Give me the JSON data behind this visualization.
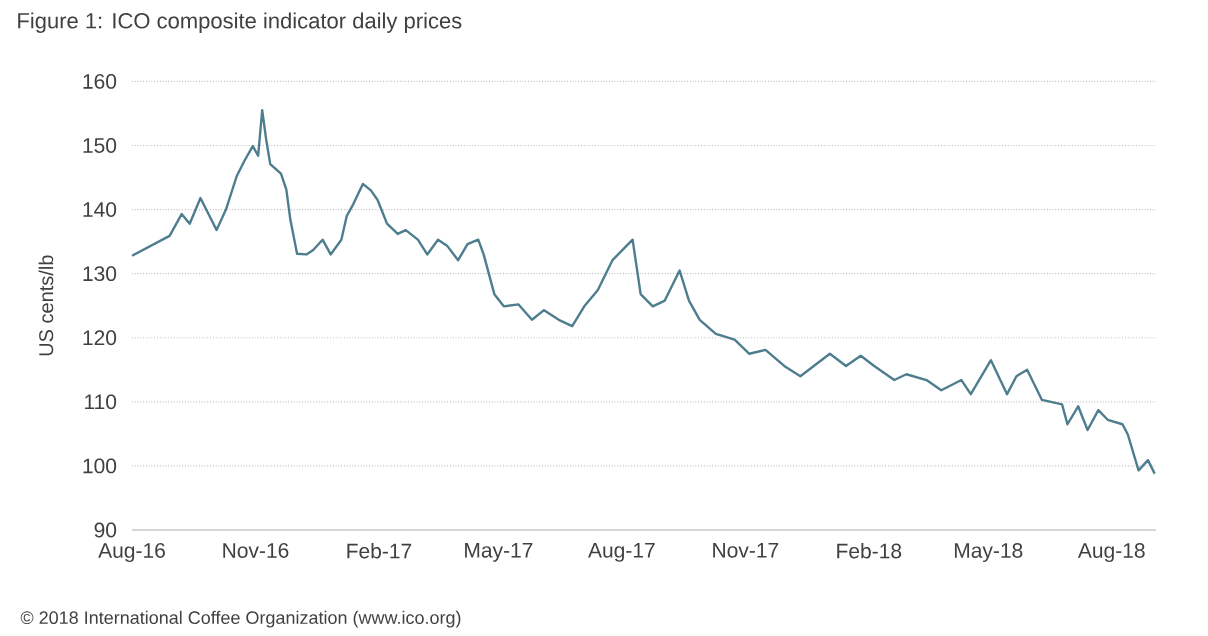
{
  "chart_data": {
    "type": "line",
    "title": "Figure 1: ICO composite indicator daily prices",
    "ylabel": "US cents/lb",
    "annotations": [
      "© 2018 International Coffee Organization (www.ico.org)"
    ],
    "color": "#4e7d8e",
    "grid": "y",
    "line_style": "solid",
    "xlim": [
      "2016-08-01",
      "2018-09-03"
    ],
    "xticks": [
      {
        "value": "2016-08-01",
        "label": "Aug-16"
      },
      {
        "value": "2016-11-01",
        "label": "Nov-16"
      },
      {
        "value": "2017-02-01",
        "label": "Feb-17"
      },
      {
        "value": "2017-05-01",
        "label": "May-17"
      },
      {
        "value": "2017-08-01",
        "label": "Aug-17"
      },
      {
        "value": "2017-11-01",
        "label": "Nov-17"
      },
      {
        "value": "2018-02-01",
        "label": "Feb-18"
      },
      {
        "value": "2018-05-01",
        "label": "May-18"
      },
      {
        "value": "2018-08-01",
        "label": "Aug-18"
      }
    ],
    "ylim": [
      90,
      160
    ],
    "yticks": [
      90,
      100,
      110,
      120,
      130,
      140,
      150,
      160
    ],
    "x": [
      "2016-08-01",
      "2016-08-29",
      "2016-09-07",
      "2016-09-13",
      "2016-09-21",
      "2016-09-27",
      "2016-10-03",
      "2016-10-10",
      "2016-10-18",
      "2016-10-24",
      "2016-10-30",
      "2016-11-03",
      "2016-11-06",
      "2016-11-09",
      "2016-11-12",
      "2016-11-20",
      "2016-11-24",
      "2016-11-27",
      "2016-12-02",
      "2016-12-09",
      "2016-12-14",
      "2016-12-21",
      "2016-12-27",
      "2017-01-04",
      "2017-01-08",
      "2017-01-13",
      "2017-01-20",
      "2017-01-26",
      "2017-01-31",
      "2017-02-07",
      "2017-02-15",
      "2017-02-21",
      "2017-03-02",
      "2017-03-09",
      "2017-03-17",
      "2017-03-24",
      "2017-04-01",
      "2017-04-08",
      "2017-04-16",
      "2017-04-20",
      "2017-04-28",
      "2017-05-05",
      "2017-05-16",
      "2017-05-26",
      "2017-06-04",
      "2017-06-15",
      "2017-06-25",
      "2017-07-04",
      "2017-07-14",
      "2017-07-25",
      "2017-08-09",
      "2017-08-15",
      "2017-08-24",
      "2017-09-02",
      "2017-09-13",
      "2017-09-20",
      "2017-09-28",
      "2017-10-10",
      "2017-10-24",
      "2017-11-04",
      "2017-11-16",
      "2017-11-30",
      "2017-12-12",
      "2017-12-22",
      "2018-01-03",
      "2018-01-15",
      "2018-01-26",
      "2018-02-05",
      "2018-02-20",
      "2018-03-01",
      "2018-03-16",
      "2018-03-27",
      "2018-04-11",
      "2018-04-18",
      "2018-05-03",
      "2018-05-15",
      "2018-05-22",
      "2018-05-30",
      "2018-06-10",
      "2018-06-25",
      "2018-06-29",
      "2018-07-07",
      "2018-07-14",
      "2018-07-22",
      "2018-07-29",
      "2018-08-09",
      "2018-08-13",
      "2018-08-21",
      "2018-08-28",
      "2018-09-02"
    ],
    "values": [
      132.8,
      135.9,
      139.3,
      137.8,
      141.8,
      139.3,
      136.8,
      140.0,
      145.2,
      147.7,
      149.9,
      148.4,
      155.5,
      150.9,
      147.1,
      145.6,
      143.1,
      138.4,
      133.1,
      133.0,
      133.7,
      135.3,
      133.0,
      135.3,
      139.0,
      140.9,
      144.0,
      143.0,
      141.5,
      137.8,
      136.2,
      136.8,
      135.3,
      133.0,
      135.3,
      134.3,
      132.1,
      134.6,
      135.3,
      133.0,
      126.8,
      124.9,
      125.2,
      122.8,
      124.3,
      122.8,
      121.8,
      124.9,
      127.4,
      132.1,
      135.3,
      126.8,
      124.9,
      125.8,
      130.5,
      125.8,
      122.8,
      120.6,
      119.7,
      117.5,
      118.1,
      115.6,
      114.0,
      115.6,
      117.5,
      115.6,
      117.2,
      115.6,
      113.4,
      114.3,
      113.4,
      111.8,
      113.4,
      111.2,
      116.5,
      111.2,
      114.0,
      115.0,
      110.3,
      109.6,
      106.5,
      109.3,
      105.6,
      108.7,
      107.2,
      106.5,
      104.9,
      99.3,
      100.9,
      98.8
    ]
  }
}
